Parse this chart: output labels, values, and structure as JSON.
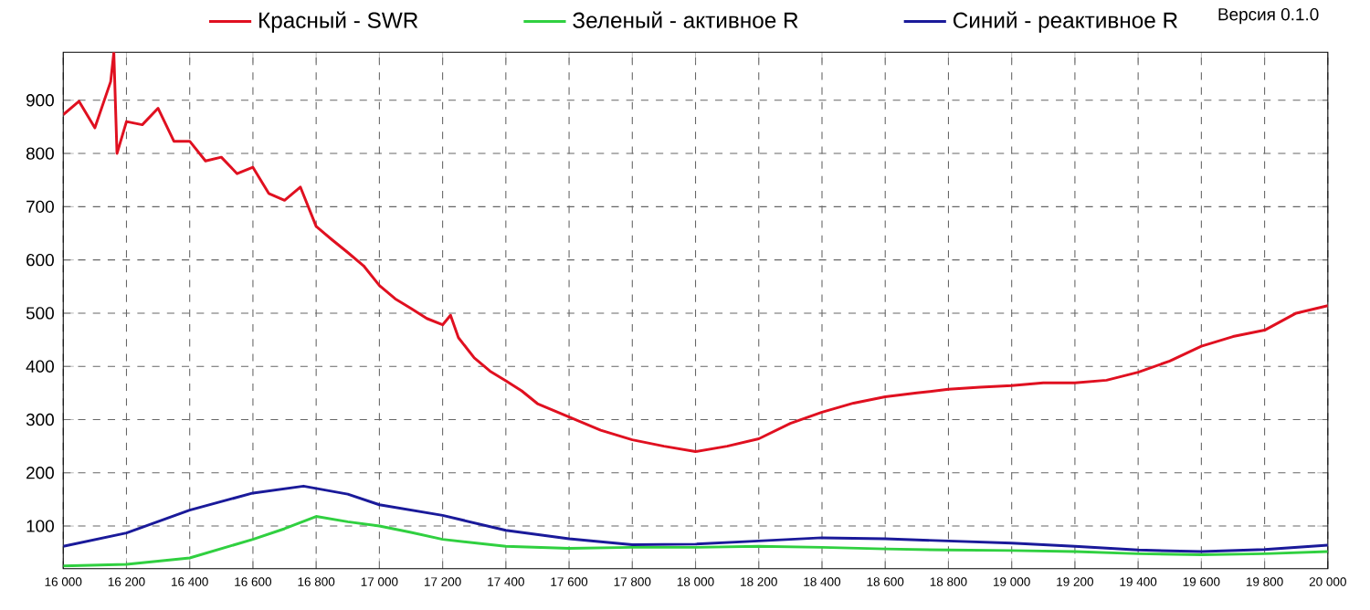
{
  "chart_data": {
    "type": "line",
    "x": [
      16000,
      16050,
      16100,
      16150,
      16160,
      16170,
      16200,
      16250,
      16300,
      16350,
      16400,
      16450,
      16500,
      16550,
      16600,
      16650,
      16700,
      16750,
      16800,
      16850,
      16900,
      16950,
      17000,
      17050,
      17100,
      17150,
      17200,
      17225,
      17250,
      17300,
      17350,
      17400,
      17450,
      17500,
      17600,
      17700,
      17800,
      17900,
      18000,
      18100,
      18200,
      18300,
      18400,
      18500,
      18600,
      18700,
      18800,
      18900,
      19000,
      19100,
      19200,
      19300,
      19400,
      19500,
      19600,
      19700,
      19800,
      19900,
      20000
    ],
    "series": [
      {
        "name": "Красный - SWR",
        "color": "#e01020",
        "values": [
          873,
          898,
          848,
          935,
          990,
          800,
          860,
          854,
          885,
          823,
          823,
          786,
          793,
          762,
          774,
          725,
          712,
          737,
          663,
          638,
          614,
          589,
          552,
          527,
          509,
          490,
          478,
          496,
          454,
          416,
          391,
          373,
          354,
          330,
          305,
          280,
          262,
          250,
          240,
          250,
          264,
          293,
          314,
          331,
          343,
          350,
          357,
          361,
          364,
          369,
          369,
          374,
          389,
          410,
          438,
          456,
          468,
          500,
          514
        ]
      },
      {
        "name": "Зеленый - активное R",
        "color": "#30d040",
        "x": [
          16000,
          16200,
          16400,
          16600,
          16700,
          16800,
          16900,
          17000,
          17100,
          17200,
          17400,
          17600,
          17800,
          18000,
          18200,
          18400,
          18600,
          18800,
          19000,
          19200,
          19400,
          19600,
          19800,
          20000
        ],
        "values": [
          25,
          28,
          40,
          75,
          95,
          118,
          108,
          100,
          88,
          75,
          62,
          58,
          60,
          60,
          62,
          60,
          57,
          55,
          54,
          52,
          48,
          46,
          48,
          52
        ]
      },
      {
        "name": "Синий - реактивное R",
        "color": "#1a1a9a",
        "x": [
          16000,
          16200,
          16400,
          16600,
          16760,
          16900,
          17000,
          17200,
          17400,
          17600,
          17800,
          18000,
          18200,
          18400,
          18600,
          18800,
          19000,
          19200,
          19400,
          19600,
          19800,
          20000
        ],
        "values": [
          62,
          87,
          130,
          162,
          175,
          160,
          140,
          120,
          92,
          76,
          65,
          66,
          72,
          78,
          76,
          72,
          68,
          62,
          55,
          52,
          56,
          64
        ]
      }
    ],
    "xlim": [
      16000,
      20000
    ],
    "xticks": [
      {
        "value": 16000,
        "label": "16 000"
      },
      {
        "value": 16200,
        "label": "16 200"
      },
      {
        "value": 16400,
        "label": "16 400"
      },
      {
        "value": 16600,
        "label": "16 600"
      },
      {
        "value": 16800,
        "label": "16 800"
      },
      {
        "value": 17000,
        "label": "17 000"
      },
      {
        "value": 17200,
        "label": "17 200"
      },
      {
        "value": 17400,
        "label": "17 400"
      },
      {
        "value": 17600,
        "label": "17 600"
      },
      {
        "value": 17800,
        "label": "17 800"
      },
      {
        "value": 18000,
        "label": "18 000"
      },
      {
        "value": 18200,
        "label": "18 200"
      },
      {
        "value": 18400,
        "label": "18 400"
      },
      {
        "value": 18600,
        "label": "18 600"
      },
      {
        "value": 18800,
        "label": "18 800"
      },
      {
        "value": 19000,
        "label": "19 000"
      },
      {
        "value": 19200,
        "label": "19 200"
      },
      {
        "value": 19400,
        "label": "19 400"
      },
      {
        "value": 19600,
        "label": "19 600"
      },
      {
        "value": 19800,
        "label": "19 800"
      },
      {
        "value": 20000,
        "label": "20 000"
      }
    ],
    "ylim": [
      20,
      990
    ],
    "yticks": [
      100,
      200,
      300,
      400,
      500,
      600,
      700,
      800,
      900
    ],
    "grid": true,
    "line_style": "solid",
    "legend": "top",
    "annotations": [
      "Версия 0.1.0"
    ]
  }
}
